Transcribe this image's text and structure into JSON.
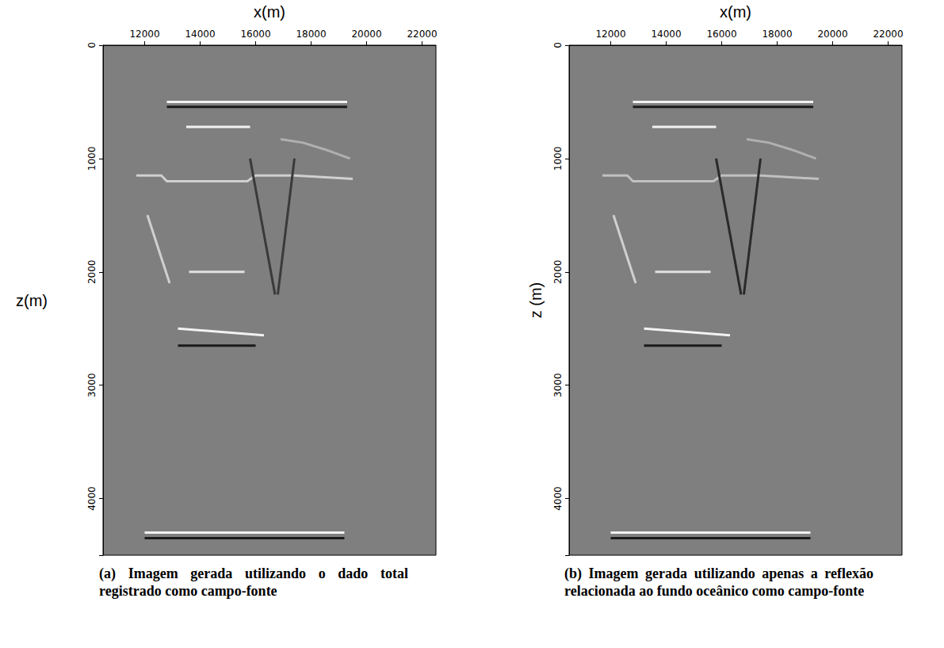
{
  "chart_data": [
    {
      "type": "line",
      "title": "(a) Imagem gerada utilizando o dado total registrado como campo-fonte",
      "xlabel": "x(m)",
      "ylabel": "z(m)",
      "xlim": [
        10500,
        22500
      ],
      "xticks": [
        12000,
        14000,
        16000,
        18000,
        20000,
        22000
      ],
      "ylim": [
        0,
        4500
      ],
      "yticks": [
        0,
        1000,
        2000,
        3000,
        4000
      ],
      "grid": false,
      "series": [
        {
          "color": "#f2f2f2",
          "x": [
            12800,
            19300
          ],
          "values": [
            500,
            500
          ]
        },
        {
          "color": "#1a1a1a",
          "x": [
            12800,
            19300
          ],
          "values": [
            545,
            545
          ]
        },
        {
          "color": "#f2f2f2",
          "x": [
            13500,
            15800
          ],
          "values": [
            720,
            720
          ]
        },
        {
          "color": "#d0d0d0",
          "x": [
            11700,
            12600,
            12800,
            15700,
            16000,
            17400,
            19500
          ],
          "values": [
            1150,
            1150,
            1200,
            1200,
            1150,
            1150,
            1180
          ]
        },
        {
          "color": "#b0b0b0",
          "x": [
            16900,
            17700,
            18500,
            19400
          ],
          "values": [
            830,
            860,
            920,
            1000
          ]
        },
        {
          "color": "#3a3a3a",
          "x": [
            15800,
            16700
          ],
          "values": [
            1000,
            2200
          ]
        },
        {
          "color": "#3a3a3a",
          "x": [
            17400,
            16800
          ],
          "values": [
            1000,
            2200
          ]
        },
        {
          "color": "#e0e0e0",
          "x": [
            13600,
            15600
          ],
          "values": [
            2000,
            2000
          ]
        },
        {
          "color": "#f2f2f2",
          "x": [
            13200,
            16300
          ],
          "values": [
            2500,
            2560
          ]
        },
        {
          "color": "#1a1a1a",
          "x": [
            13200,
            16000
          ],
          "values": [
            2650,
            2650
          ]
        },
        {
          "color": "#d0d0d0",
          "x": [
            12100,
            12500,
            12900
          ],
          "values": [
            1500,
            1800,
            2100
          ]
        },
        {
          "color": "#f2f2f2",
          "x": [
            12000,
            19200
          ],
          "values": [
            4300,
            4300
          ]
        },
        {
          "color": "#1a1a1a",
          "x": [
            12000,
            19200
          ],
          "values": [
            4350,
            4350
          ]
        }
      ]
    },
    {
      "type": "line",
      "title": "(b) Imagem gerada utilizando apenas a reflexão relacionada ao fundo oceânico como campo-fonte",
      "xlabel": "x(m)",
      "ylabel": "z (m)",
      "xlim": [
        10500,
        22500
      ],
      "xticks": [
        12000,
        14000,
        16000,
        18000,
        20000,
        22000
      ],
      "ylim": [
        0,
        4500
      ],
      "yticks": [
        0,
        1000,
        2000,
        3000,
        4000
      ],
      "grid": false,
      "series": [
        {
          "color": "#f2f2f2",
          "x": [
            12800,
            19300
          ],
          "values": [
            500,
            500
          ]
        },
        {
          "color": "#1a1a1a",
          "x": [
            12800,
            19300
          ],
          "values": [
            545,
            545
          ]
        },
        {
          "color": "#f2f2f2",
          "x": [
            13500,
            15800
          ],
          "values": [
            720,
            720
          ]
        },
        {
          "color": "#c0c0c0",
          "x": [
            11700,
            12600,
            12800,
            15700,
            16000,
            17400,
            19500
          ],
          "values": [
            1150,
            1150,
            1200,
            1200,
            1150,
            1150,
            1180
          ]
        },
        {
          "color": "#b0b0b0",
          "x": [
            16900,
            17700,
            18500,
            19400
          ],
          "values": [
            830,
            860,
            920,
            1000
          ]
        },
        {
          "color": "#2a2a2a",
          "x": [
            15800,
            16700
          ],
          "values": [
            1000,
            2200
          ]
        },
        {
          "color": "#2a2a2a",
          "x": [
            17400,
            16800
          ],
          "values": [
            1000,
            2200
          ]
        },
        {
          "color": "#e0e0e0",
          "x": [
            13600,
            15600
          ],
          "values": [
            2000,
            2000
          ]
        },
        {
          "color": "#f2f2f2",
          "x": [
            13200,
            16300
          ],
          "values": [
            2500,
            2560
          ]
        },
        {
          "color": "#1a1a1a",
          "x": [
            13200,
            16000
          ],
          "values": [
            2650,
            2650
          ]
        },
        {
          "color": "#d0d0d0",
          "x": [
            12100,
            12500,
            12900
          ],
          "values": [
            1500,
            1800,
            2100
          ]
        },
        {
          "color": "#f2f2f2",
          "x": [
            12000,
            19200
          ],
          "values": [
            4300,
            4300
          ]
        },
        {
          "color": "#1a1a1a",
          "x": [
            12000,
            19200
          ],
          "values": [
            4350,
            4350
          ]
        }
      ]
    }
  ]
}
